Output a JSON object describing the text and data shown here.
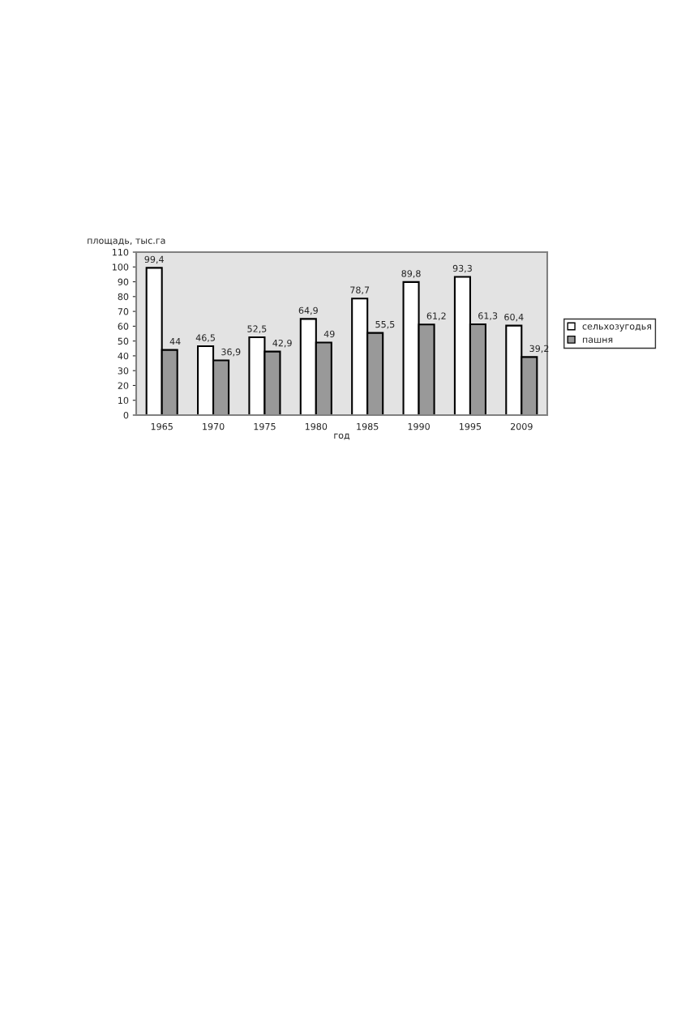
{
  "chart_data": {
    "type": "bar",
    "xlabel": "год",
    "ylabel": "площадь, тыс.га",
    "categories": [
      "1965",
      "1970",
      "1975",
      "1980",
      "1985",
      "1990",
      "1995",
      "2009"
    ],
    "series": [
      {
        "name": "сельхозугодья",
        "color": "#ffffff",
        "values": [
          99.4,
          46.5,
          52.5,
          64.9,
          78.7,
          89.8,
          93.3,
          60.4
        ],
        "value_labels": [
          "99,4",
          "46,5",
          "52,5",
          "64,9",
          "78,7",
          "89,8",
          "93,3",
          "60,4"
        ]
      },
      {
        "name": "пашня",
        "color": "#999999",
        "values": [
          44,
          36.9,
          42.9,
          49,
          55.5,
          61.2,
          61.3,
          39.2
        ],
        "value_labels": [
          "44",
          "36,9",
          "42,9",
          "49",
          "55,5",
          "61,2",
          "61,3",
          "39,2"
        ]
      }
    ],
    "ylim": [
      0,
      110
    ],
    "yticks": [
      0,
      10,
      20,
      30,
      40,
      50,
      60,
      70,
      80,
      90,
      100,
      110
    ],
    "grid": false,
    "legend": "right"
  }
}
